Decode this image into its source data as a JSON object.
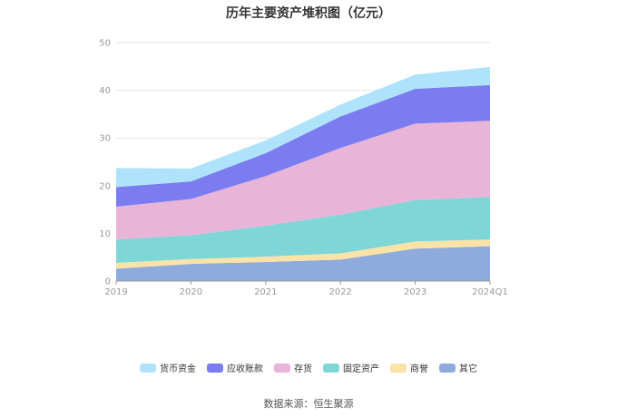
{
  "chart_data": {
    "type": "area",
    "stacked": true,
    "title": "历年主要资产堆积图（亿元）",
    "categories": [
      "2019",
      "2020",
      "2021",
      "2022",
      "2023",
      "2024Q1"
    ],
    "ylim": [
      0,
      50
    ],
    "yticks": [
      "0",
      "10",
      "20",
      "30",
      "40",
      "50"
    ],
    "grid": true,
    "legend_position": "bottom",
    "series": [
      {
        "name": "其它",
        "color": "#8faadc",
        "values": [
          2.6,
          3.6,
          4.0,
          4.5,
          6.8,
          7.3
        ]
      },
      {
        "name": "商誉",
        "color": "#fbe3a8",
        "values": [
          1.2,
          1.0,
          1.1,
          1.3,
          1.5,
          1.4
        ]
      },
      {
        "name": "固定资产",
        "color": "#7fd6d6",
        "values": [
          4.9,
          5.0,
          6.5,
          8.1,
          8.7,
          8.9
        ]
      },
      {
        "name": "存货",
        "color": "#e8b4d8",
        "values": [
          6.9,
          7.6,
          10.4,
          14.0,
          16.0,
          16.0
        ]
      },
      {
        "name": "应收账款",
        "color": "#7b7cf0",
        "values": [
          4.1,
          3.7,
          4.8,
          6.6,
          7.3,
          7.5
        ]
      },
      {
        "name": "货币资金",
        "color": "#aee3fb",
        "values": [
          4.0,
          2.7,
          2.7,
          2.5,
          3.0,
          3.8
        ]
      }
    ],
    "legend_order": [
      "货币资金",
      "应收账款",
      "存货",
      "固定资产",
      "商誉",
      "其它"
    ]
  },
  "source": "数据来源：恒生聚源"
}
